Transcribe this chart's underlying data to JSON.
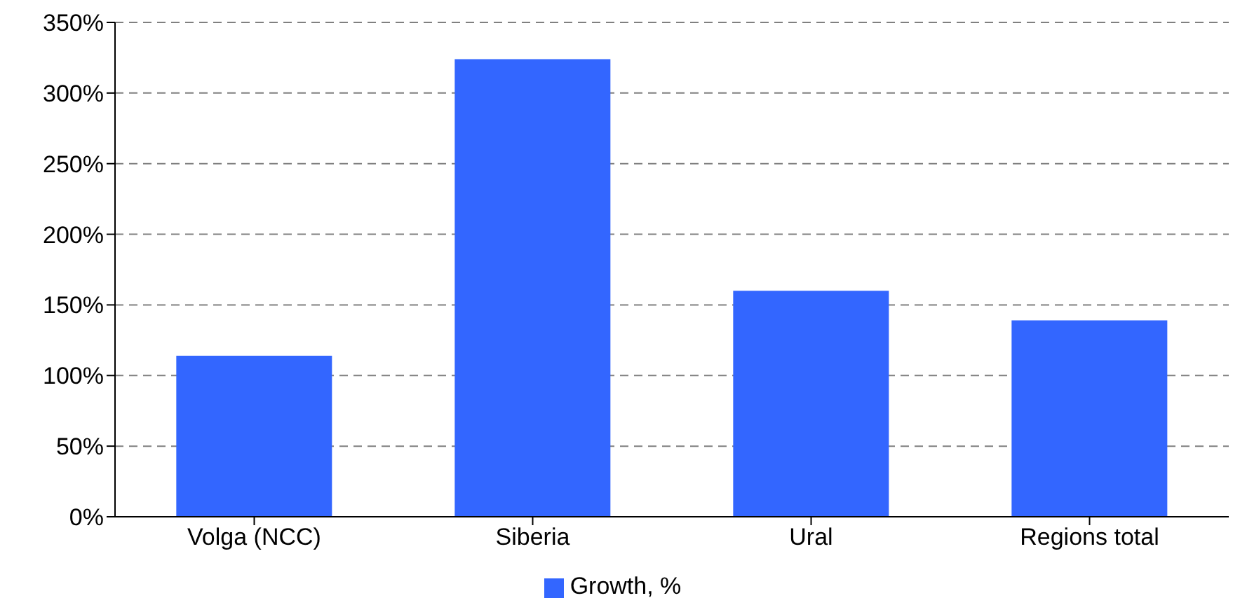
{
  "chart_data": {
    "type": "bar",
    "categories": [
      "Volga (NCC)",
      "Siberia",
      "Ural",
      "Regions total"
    ],
    "series": [
      {
        "name": "Growth, %",
        "color": "#3366ff",
        "values": [
          114,
          324,
          160,
          139
        ]
      }
    ],
    "ylim": [
      0,
      350
    ],
    "yticks": [
      {
        "value": 0,
        "label": "0%"
      },
      {
        "value": 50,
        "label": "50%"
      },
      {
        "value": 100,
        "label": "100%"
      },
      {
        "value": 150,
        "label": "150%"
      },
      {
        "value": 200,
        "label": "200%"
      },
      {
        "value": 250,
        "label": "250%"
      },
      {
        "value": 300,
        "label": "300%"
      },
      {
        "value": 350,
        "label": "350%"
      }
    ],
    "grid": "y",
    "legend": "bottom"
  }
}
